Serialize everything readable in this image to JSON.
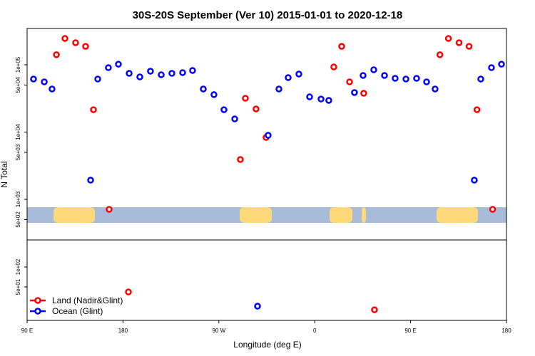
{
  "chart_data": {
    "type": "scatter",
    "title": "30S-20S September (Ver 10)   2015-01-01 to 2020-12-18",
    "xlabel": "Longitude (deg E)",
    "ylabel": "N Total",
    "xlim": [
      90,
      540
    ],
    "x_ticks": [
      {
        "value": 90,
        "label": "90 E"
      },
      {
        "value": 180,
        "label": "180"
      },
      {
        "value": 270,
        "label": "90 W"
      },
      {
        "value": 360,
        "label": "0"
      },
      {
        "value": 450,
        "label": "90 E"
      },
      {
        "value": 540,
        "label": "180"
      }
    ],
    "y_scale": "log",
    "upper_panel_ticks": [
      {
        "value": 100000,
        "label": "1e+05"
      },
      {
        "value": 50000,
        "label": "5e+04"
      },
      {
        "value": 10000,
        "label": "1e+04"
      },
      {
        "value": 5000,
        "label": "5e+03"
      },
      {
        "value": 1000,
        "label": "1e+03"
      },
      {
        "value": 500,
        "label": "5e+02"
      }
    ],
    "lower_panel_ticks": [
      {
        "value": 100,
        "label": "1e+02"
      },
      {
        "value": 50,
        "label": "5e+01"
      }
    ],
    "legend": {
      "placement": "bottom-left"
    },
    "series": [
      {
        "name": "Land (Nadir&Glint)",
        "color": "#ff0000",
        "points": [
          [
            117.5,
            141000
          ],
          [
            125.5,
            246000
          ],
          [
            135.5,
            213000
          ],
          [
            144.9,
            188000
          ],
          [
            152.3,
            21500
          ],
          [
            167,
            711
          ],
          [
            290.2,
            3910
          ],
          [
            294.9,
            31800
          ],
          [
            304.9,
            22100
          ],
          [
            314.3,
            8330
          ],
          [
            377.9,
            93000
          ],
          [
            385.3,
            188000
          ],
          [
            392.7,
            55700
          ],
          [
            406,
            37700
          ],
          [
            477.5,
            141000
          ],
          [
            485.5,
            246000
          ],
          [
            495.5,
            213000
          ],
          [
            504.9,
            188000
          ],
          [
            512.3,
            21500
          ],
          [
            527,
            711
          ],
          [
            185.1,
            42
          ],
          [
            416.1,
            22.6
          ]
        ]
      },
      {
        "name": "Ocean (Glint)",
        "color": "#0000ff",
        "points": [
          [
            96,
            61400
          ],
          [
            106.1,
            55700
          ],
          [
            113.4,
            43700
          ],
          [
            149.6,
            1930
          ],
          [
            156.3,
            61400
          ],
          [
            166.3,
            90700
          ],
          [
            175.7,
            102000
          ],
          [
            185.8,
            74600
          ],
          [
            195.8,
            66100
          ],
          [
            205.8,
            80300
          ],
          [
            215.9,
            71100
          ],
          [
            225.9,
            74600
          ],
          [
            236,
            76500
          ],
          [
            245.3,
            82300
          ],
          [
            255.4,
            43700
          ],
          [
            265.4,
            36000
          ],
          [
            274.8,
            21500
          ],
          [
            284.9,
            15700
          ],
          [
            316.3,
            8960
          ],
          [
            326.4,
            43700
          ],
          [
            335.1,
            64500
          ],
          [
            345.1,
            72800
          ],
          [
            355.2,
            33400
          ],
          [
            365.9,
            31000
          ],
          [
            373.2,
            29600
          ],
          [
            397.3,
            38700
          ],
          [
            405.4,
            69400
          ],
          [
            415.4,
            84300
          ],
          [
            425.5,
            69400
          ],
          [
            435.5,
            62900
          ],
          [
            445.6,
            61400
          ],
          [
            455.6,
            62900
          ],
          [
            465,
            55700
          ],
          [
            473,
            43700
          ],
          [
            509.8,
            1930
          ],
          [
            515.9,
            61400
          ],
          [
            525.9,
            90700
          ],
          [
            535.3,
            102000
          ],
          [
            306.3,
            25.6
          ]
        ]
      }
    ]
  }
}
